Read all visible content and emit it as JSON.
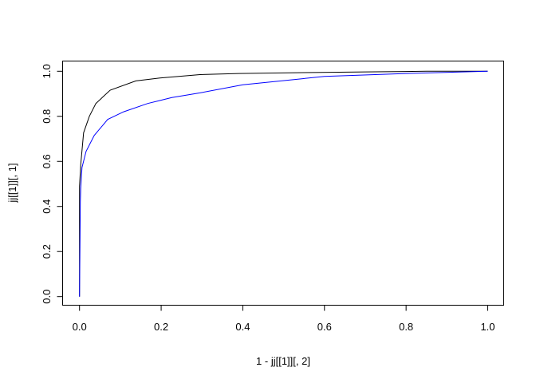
{
  "chart_data": {
    "type": "line",
    "title": "",
    "xlabel": "1 - jj[[1]][, 2]",
    "ylabel": "jj[[1]][, 1]",
    "xlim": [
      0,
      1
    ],
    "ylim": [
      0,
      1
    ],
    "grid": false,
    "x_ticks": [
      "0.0",
      "0.2",
      "0.4",
      "0.6",
      "0.8",
      "1.0"
    ],
    "y_ticks": [
      "0.0",
      "0.2",
      "0.4",
      "0.6",
      "0.8",
      "1.0"
    ],
    "series": [
      {
        "color": "#000000",
        "x": [
          0,
          0,
          0.003,
          0.01,
          0.024,
          0.04,
          0.075,
          0.138,
          0.197,
          0.295,
          0.39,
          0.55,
          0.7,
          0.85,
          1.0
        ],
        "y": [
          0,
          0.49,
          0.585,
          0.727,
          0.8,
          0.857,
          0.916,
          0.957,
          0.97,
          0.985,
          0.99,
          0.994,
          0.997,
          1.0,
          1.0
        ]
      },
      {
        "color": "#0000ff",
        "x": [
          0,
          0.002,
          0.003,
          0.006,
          0.016,
          0.036,
          0.069,
          0.108,
          0.167,
          0.226,
          0.295,
          0.4,
          0.6,
          0.8,
          1.0
        ],
        "y": [
          0,
          0.42,
          0.48,
          0.573,
          0.644,
          0.715,
          0.786,
          0.82,
          0.857,
          0.883,
          0.904,
          0.94,
          0.977,
          0.99,
          1.0
        ]
      }
    ]
  }
}
